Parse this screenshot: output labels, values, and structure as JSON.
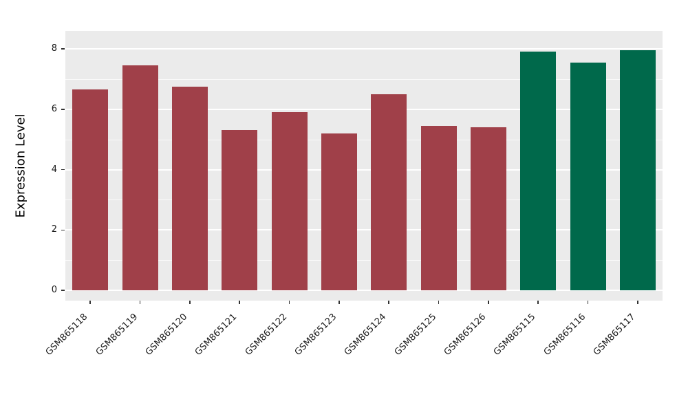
{
  "chart_data": {
    "type": "bar",
    "categories": [
      "GSM865118",
      "GSM865119",
      "GSM865120",
      "GSM865121",
      "GSM865122",
      "GSM865123",
      "GSM865124",
      "GSM865125",
      "GSM865126",
      "GSM865115",
      "GSM865116",
      "GSM865117"
    ],
    "values": [
      6.65,
      7.45,
      6.75,
      5.3,
      5.9,
      5.2,
      6.5,
      5.45,
      5.4,
      7.9,
      7.55,
      7.95
    ],
    "colors": [
      "#A04049",
      "#A04049",
      "#A04049",
      "#A04049",
      "#A04049",
      "#A04049",
      "#A04049",
      "#A04049",
      "#A04049",
      "#00694B",
      "#00694B",
      "#00694B"
    ],
    "title": "",
    "xlabel": "",
    "ylabel": "Expression Level",
    "ylim": [
      0,
      8
    ],
    "yticks": [
      0,
      2,
      4,
      6,
      8
    ],
    "ytick_labels": [
      "0",
      "2",
      "4",
      "6",
      "8"
    ],
    "grid": true,
    "legend": "none",
    "panel_bg": "#EBEBEB",
    "grid_color": "#FFFFFF"
  }
}
